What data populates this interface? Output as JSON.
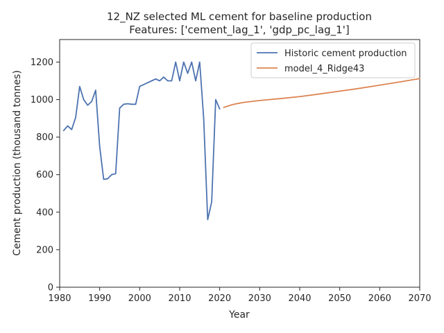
{
  "chart_data": {
    "type": "line",
    "title": "12_NZ selected ML cement for baseline production",
    "subtitle": "Features: ['cement_lag_1', 'gdp_pc_lag_1']",
    "xlabel": "Year",
    "ylabel": "Cement production (thousand tonnes)",
    "xlim": [
      1980,
      2070
    ],
    "ylim": [
      0,
      1320
    ],
    "x_ticks": [
      1980,
      1990,
      2000,
      2010,
      2020,
      2030,
      2040,
      2050,
      2060,
      2070
    ],
    "y_ticks": [
      0,
      200,
      400,
      600,
      800,
      1000,
      1200
    ],
    "grid": false,
    "legend_position": "top-right",
    "series": [
      {
        "name": "Historic cement production",
        "color": "#4c72b0",
        "x": [
          1981,
          1982,
          1983,
          1984,
          1985,
          1986,
          1987,
          1988,
          1989,
          1990,
          1991,
          1992,
          1993,
          1994,
          1995,
          1996,
          1997,
          1998,
          1999,
          2000,
          2001,
          2002,
          2003,
          2004,
          2005,
          2006,
          2007,
          2008,
          2009,
          2010,
          2011,
          2012,
          2013,
          2014,
          2015,
          2016,
          2017,
          2018,
          2019,
          2020
        ],
        "y": [
          835,
          860,
          840,
          905,
          1070,
          1000,
          970,
          990,
          1050,
          750,
          575,
          578,
          600,
          605,
          955,
          975,
          978,
          975,
          975,
          1070,
          1080,
          1090,
          1100,
          1110,
          1100,
          1120,
          1100,
          1100,
          1200,
          1100,
          1200,
          1140,
          1200,
          1100,
          1200,
          900,
          360,
          455,
          1000,
          950
        ]
      },
      {
        "name": "model_4_Ridge43",
        "color": "#dd8452",
        "x": [
          2021,
          2022,
          2023,
          2024,
          2025,
          2026,
          2028,
          2030,
          2035,
          2040,
          2045,
          2050,
          2055,
          2060,
          2065,
          2070
        ],
        "y": [
          958,
          965,
          972,
          977,
          981,
          985,
          990,
          995,
          1005,
          1016,
          1030,
          1045,
          1060,
          1077,
          1094,
          1112
        ]
      }
    ]
  }
}
